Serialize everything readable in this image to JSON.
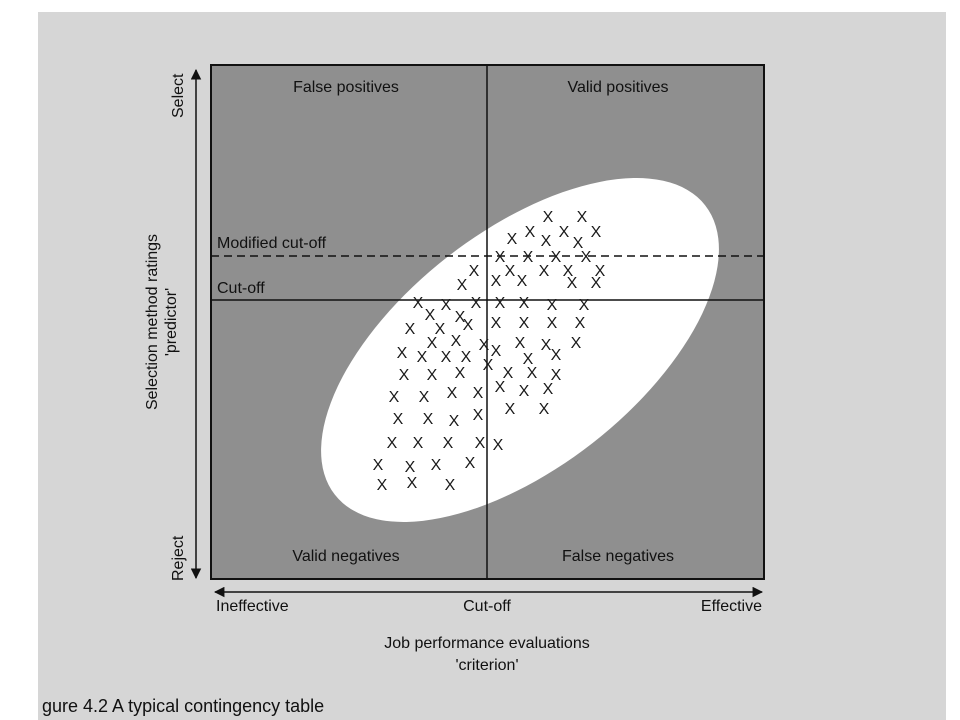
{
  "quadrants": {
    "top_left": "False positives",
    "top_right": "Valid positives",
    "bottom_left": "Valid negatives",
    "bottom_right": "False negatives"
  },
  "lines": {
    "modified_cutoff": "Modified cut-off",
    "cutoff": "Cut-off",
    "vertical_cutoff": "Cut-off"
  },
  "y_axis": {
    "title_line1": "Selection method ratings",
    "title_line2": "'predictor'",
    "top_end": "Select",
    "bottom_end": "Reject"
  },
  "x_axis": {
    "left_end": "Ineffective",
    "right_end": "Effective",
    "title_line1": "Job performance evaluations",
    "title_line2": "'criterion'"
  },
  "caption": "gure 4.2   A typical contingency table",
  "marks": {
    "symbol": "X",
    "count": 84
  },
  "colors": {
    "box_fill": "#8f8f8f",
    "ellipse_fill": "#ffffff",
    "page_bg": "#d6d6d6",
    "ink": "#111111"
  }
}
